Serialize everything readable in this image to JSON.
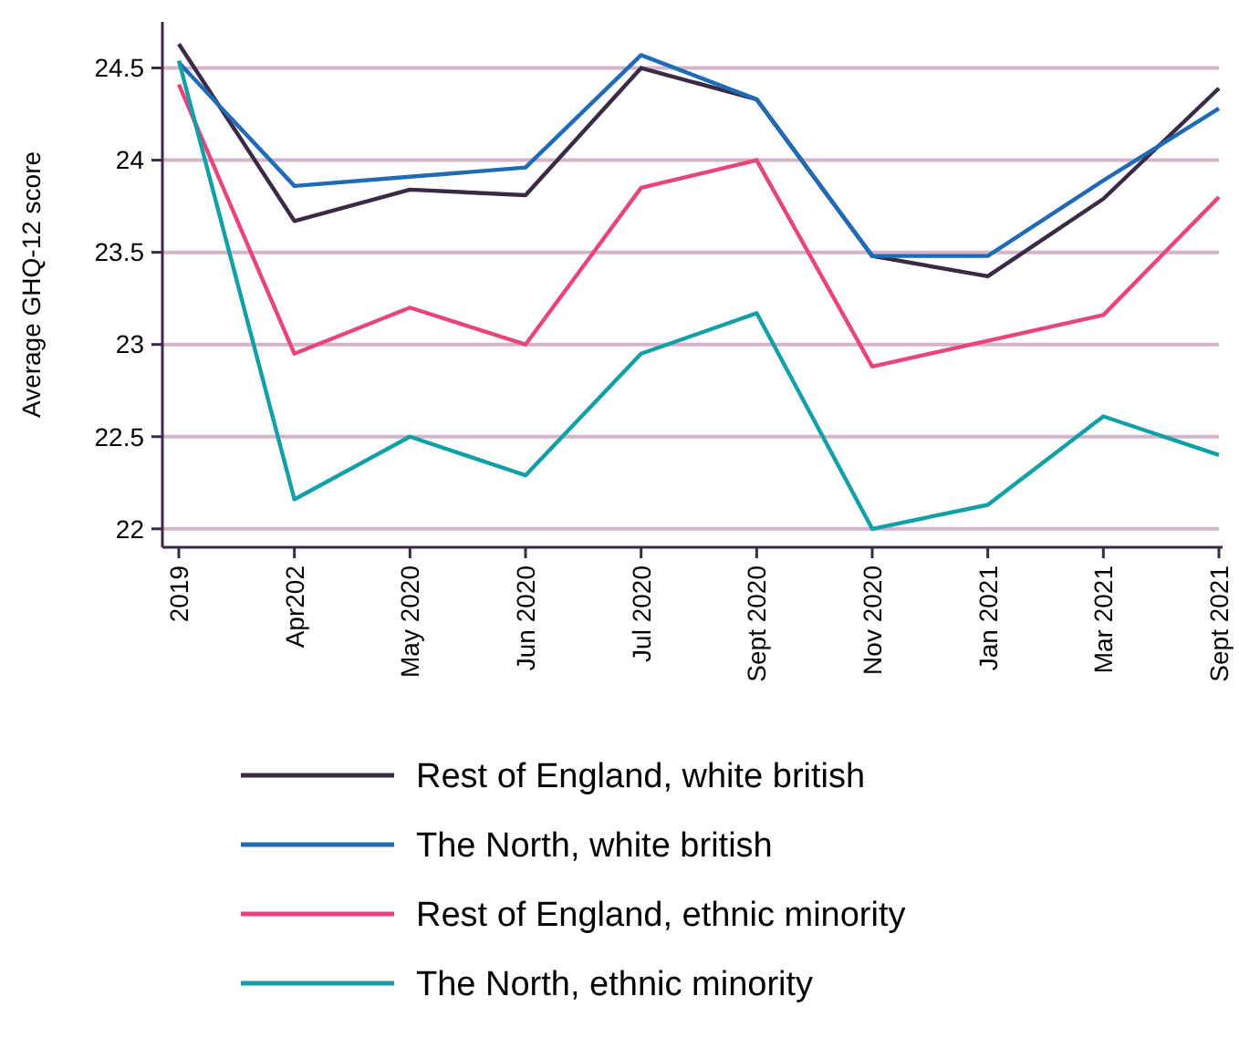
{
  "chart_data": {
    "type": "line",
    "ylabel": "Average GHQ-12 score",
    "categories": [
      "2019",
      "Apr202",
      "May 2020",
      "Jun 2020",
      "Jul 2020",
      "Sept 2020",
      "Nov 2020",
      "Jan 2021",
      "Mar 2021",
      "Sept 2021"
    ],
    "series": [
      {
        "name": "Rest of England, white british",
        "color": "#3a2a45",
        "values": [
          24.63,
          23.67,
          23.84,
          23.81,
          24.5,
          24.33,
          23.48,
          23.37,
          23.79,
          24.39
        ]
      },
      {
        "name": "The North, white british",
        "color": "#1f6bb5",
        "values": [
          24.53,
          23.86,
          23.91,
          23.96,
          24.57,
          24.33,
          23.48,
          23.48,
          23.89,
          24.28
        ]
      },
      {
        "name": "Rest of England, ethnic minority",
        "color": "#e8457a",
        "values": [
          24.41,
          22.95,
          23.2,
          23.0,
          23.85,
          24.0,
          22.88,
          23.02,
          23.16,
          23.8
        ]
      },
      {
        "name": "The North, ethnic minority",
        "color": "#12a0a8",
        "values": [
          24.54,
          22.16,
          22.5,
          22.29,
          22.95,
          23.17,
          22.0,
          22.13,
          22.61,
          22.4
        ]
      }
    ],
    "ylim": [
      21.9,
      24.75
    ],
    "yticks": [
      22,
      22.5,
      23,
      23.5,
      24,
      24.5
    ],
    "grid": "y",
    "legend": "bottom",
    "marker": "none",
    "line_style": "solid"
  }
}
